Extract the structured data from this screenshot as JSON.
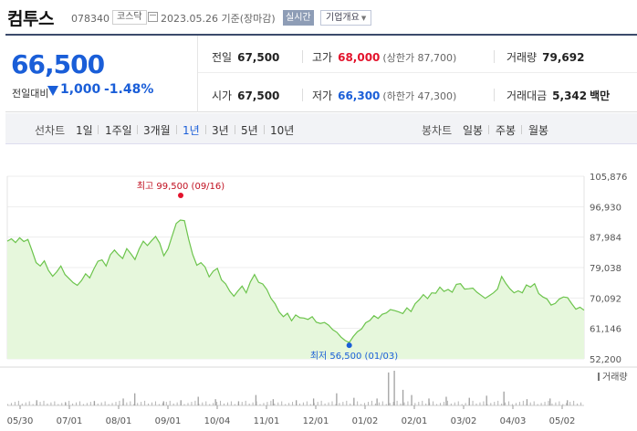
{
  "header": {
    "name": "컴투스",
    "code": "078340",
    "market": "코스닥",
    "date": "2023.05.26",
    "date_suffix": "기준(장마감)",
    "realtime_btn": "실시간",
    "company_btn": "기업개요"
  },
  "price": {
    "current": "66,500",
    "change_label": "전일대비",
    "change": "1,000",
    "change_pct": "-1.48%"
  },
  "stats": {
    "prev_close_label": "전일",
    "prev_close": "67,500",
    "high_label": "고가",
    "high": "68,000",
    "upper_limit": "(상한가 87,700)",
    "volume_label": "거래량",
    "volume": "79,692",
    "open_label": "시가",
    "open": "67,500",
    "low_label": "저가",
    "low": "66,300",
    "lower_limit": "(하한가 47,300)",
    "amount_label": "거래대금",
    "amount": "5,342",
    "amount_unit": "백만"
  },
  "periods": {
    "line_label": "선차트",
    "line_options": [
      "1일",
      "1주일",
      "3개월",
      "1년",
      "3년",
      "5년",
      "10년"
    ],
    "selected": "1년",
    "candle_label": "봉차트",
    "candle_options": [
      "일봉",
      "주봉",
      "월봉"
    ]
  },
  "colors": {
    "accent_blue": "#1a5ed8",
    "up_red": "#e3132c",
    "line_green": "#6cc44c",
    "fill_green": "#e6f7dc"
  },
  "chart_data": {
    "type": "area",
    "y_ticks": [
      "105,876",
      "96,930",
      "87,984",
      "79,038",
      "70,092",
      "61,146",
      "52,200"
    ],
    "ylim": [
      52200,
      105876
    ],
    "x_ticks": [
      "05/30",
      "07/01",
      "08/01",
      "09/01",
      "10/04",
      "11/01",
      "12/01",
      "01/02",
      "02/01",
      "03/02",
      "04/03",
      "05/02"
    ],
    "high_annotation": "최고 99,500 (09/16)",
    "low_annotation": "최저 56,500 (01/03)",
    "volume_label": "거래량",
    "series": [
      {
        "values": [
          86800,
          87500,
          86400,
          87800,
          86700,
          87300,
          84000,
          80500,
          79500,
          81000,
          78200,
          76500,
          77800,
          79500,
          77000,
          75800,
          74600,
          73800,
          75200,
          77200,
          76000,
          78600,
          80900,
          81300,
          79500,
          82800,
          84200,
          82800,
          81700,
          84600,
          83100,
          81400,
          84500,
          86800,
          85500,
          86900,
          88200,
          86200,
          82500,
          84500,
          88300,
          92000,
          93000,
          92800,
          87500,
          82900,
          79700,
          80500,
          79200,
          76300,
          78000,
          78800,
          75400,
          74200,
          72100,
          70600,
          72200,
          73600,
          71600,
          74800,
          77000,
          74700,
          74200,
          72600,
          70000,
          68400,
          66000,
          64600,
          65600,
          63400,
          65100,
          64300,
          64200,
          63800,
          64600,
          63000,
          62600,
          62900,
          62100,
          60800,
          60000,
          58600,
          57600,
          57000,
          58800,
          60200,
          61000,
          62800,
          63500,
          64900,
          64100,
          65300,
          65700,
          66700,
          66400,
          66000,
          65500,
          67200,
          66100,
          68400,
          69600,
          71100,
          69900,
          71600,
          71500,
          73300,
          72000,
          72600,
          71800,
          74100,
          74300,
          72700,
          72800,
          73000,
          71800,
          70900,
          70000,
          70800,
          71600,
          72700,
          76400,
          74400,
          72800,
          71600,
          72200,
          71600,
          73900,
          73300,
          74300,
          71400,
          70400,
          69800,
          68000,
          68500,
          69800,
          70400,
          70200,
          68400,
          66800,
          67400,
          66500
        ]
      }
    ],
    "volume_spikes": [
      [
        0.05,
        0.15
      ],
      [
        0.1,
        0.08
      ],
      [
        0.15,
        0.12
      ],
      [
        0.2,
        0.2
      ],
      [
        0.22,
        0.35
      ],
      [
        0.27,
        0.12
      ],
      [
        0.3,
        0.15
      ],
      [
        0.33,
        0.25
      ],
      [
        0.36,
        0.18
      ],
      [
        0.4,
        0.12
      ],
      [
        0.43,
        0.3
      ],
      [
        0.46,
        0.18
      ],
      [
        0.5,
        0.15
      ],
      [
        0.53,
        0.2
      ],
      [
        0.57,
        0.35
      ],
      [
        0.6,
        0.22
      ],
      [
        0.64,
        0.2
      ],
      [
        0.66,
        0.95
      ],
      [
        0.67,
        1.0
      ],
      [
        0.685,
        0.45
      ],
      [
        0.7,
        0.3
      ],
      [
        0.73,
        0.2
      ],
      [
        0.76,
        0.25
      ],
      [
        0.8,
        0.22
      ],
      [
        0.83,
        0.28
      ],
      [
        0.86,
        0.4
      ],
      [
        0.9,
        0.18
      ],
      [
        0.94,
        0.2
      ],
      [
        0.97,
        0.15
      ]
    ]
  }
}
